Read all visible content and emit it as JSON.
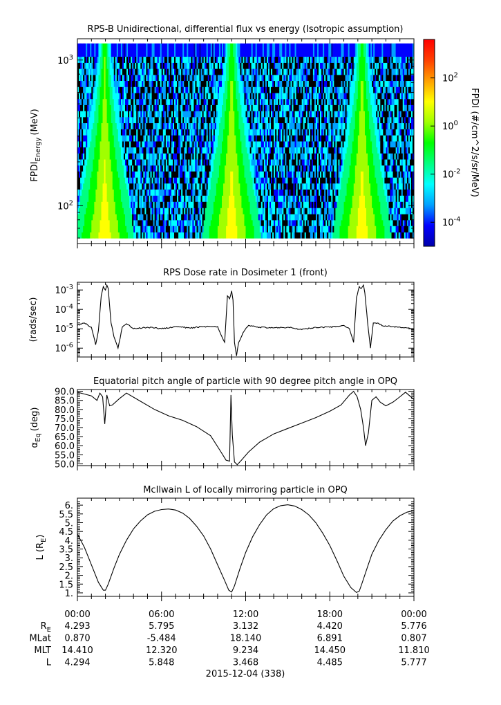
{
  "chart_data": [
    {
      "type": "heatmap",
      "title": "RPS-B  Unidirectional, differential flux vs energy (Isotropic assumption)",
      "ylabel": "FPDI",
      "ylabel_sub": "Energy",
      "ylabel_unit": "(MeV)",
      "yscale": "log",
      "ylim": [
        55,
        1400
      ],
      "yticks": [
        {
          "base": "10",
          "exp": "3",
          "value": 1000
        },
        {
          "base": "10",
          "exp": "2",
          "value": 100
        }
      ],
      "energy_bins_mev": [
        60,
        66,
        73,
        80,
        88,
        97,
        107,
        118,
        130,
        143,
        157,
        173,
        190,
        209,
        230,
        253,
        278,
        306,
        337,
        371,
        408,
        449,
        494,
        543,
        597,
        657,
        723,
        795,
        875,
        962,
        1060,
        1300
      ],
      "flux_peaks_hours": [
        1.95,
        11.0,
        20.3
      ],
      "colorbar": {
        "label": "FPDI (#/cm^2/s/sr/MeV)",
        "scale": "log",
        "range_exp": [
          -5,
          3.6
        ],
        "ticks": [
          {
            "base": "10",
            "exp": "2",
            "value": 100
          },
          {
            "base": "10",
            "exp": "0",
            "value": 1
          },
          {
            "base": "10",
            "exp": "-2",
            "value": 0.01
          },
          {
            "base": "10",
            "exp": "-4",
            "value": 0.0001
          }
        ],
        "colors": [
          "#0000aa",
          "#0000ff",
          "#00a0ff",
          "#00ffff",
          "#00ff80",
          "#00ff00",
          "#a0ff00",
          "#ffff00",
          "#ffa000",
          "#ff4000",
          "#ff0000"
        ]
      }
    },
    {
      "type": "line",
      "title": "RPS  Dose rate in Dosimeter 1 (front)",
      "ylabel": "(rads/sec)",
      "yscale": "log",
      "ylim": [
        3.5e-07,
        0.0025
      ],
      "yticks": [
        {
          "base": "10",
          "exp": "-3",
          "value": 0.001
        },
        {
          "base": "10",
          "exp": "-4",
          "value": 0.0001
        },
        {
          "base": "10",
          "exp": "-5",
          "value": 1e-05
        },
        {
          "base": "10",
          "exp": "-6",
          "value": 1e-06
        }
      ],
      "series": [
        {
          "x": [
            0,
            0.5,
            1.0,
            1.3,
            1.5,
            1.7,
            1.85,
            2.0,
            2.1,
            2.2,
            2.4,
            2.6,
            2.9,
            3.2,
            3.5,
            4,
            5,
            6,
            7,
            8,
            9,
            10,
            10.3,
            10.5,
            10.7,
            10.85,
            11.0,
            11.1,
            11.2,
            11.35,
            11.5,
            11.8,
            12.2,
            13,
            14,
            15,
            16,
            17,
            18,
            19,
            19.4,
            19.7,
            19.9,
            20.1,
            20.25,
            20.4,
            20.5,
            20.7,
            20.9,
            21.1,
            21.4,
            21.8,
            22.5,
            23.5,
            24
          ],
          "y": [
            1.5e-05,
            2e-05,
            1.2e-05,
            1.5e-06,
            8e-06,
            0.0005,
            0.0015,
            0.001,
            0.0018,
            0.0012,
            2e-05,
            4e-06,
            1e-06,
            1.2e-05,
            1.8e-05,
            1e-05,
            1.2e-05,
            1e-05,
            1.3e-05,
            1.1e-05,
            1.3e-05,
            1.3e-05,
            4e-06,
            2e-06,
            0.0005,
            0.00035,
            0.0009,
            0.0003,
            2e-06,
            4e-07,
            2e-06,
            6e-06,
            1.5e-05,
            1.2e-05,
            1.1e-05,
            1.2e-05,
            9e-06,
            1.2e-05,
            1.2e-05,
            1.5e-05,
            1e-05,
            2e-06,
            0.0004,
            0.0015,
            0.0012,
            0.0018,
            0.0007,
            2e-05,
            1e-06,
            2e-05,
            2e-05,
            1.4e-05,
            1.3e-05,
            1.1e-05,
            1e-05
          ]
        }
      ]
    },
    {
      "type": "line",
      "title": "Equatorial pitch angle of particle with 90 degree pitch angle in OPQ",
      "ylabel": "α",
      "ylabel_sub": "Eq",
      "ylabel_unit": "(deg)",
      "ylim": [
        49,
        91
      ],
      "yticks": [
        90,
        85,
        80,
        75,
        70,
        65,
        60,
        55,
        50
      ],
      "series": [
        {
          "x": [
            0,
            0.5,
            1.0,
            1.4,
            1.6,
            1.8,
            1.95,
            2.1,
            2.3,
            2.5,
            3.0,
            3.5,
            4.5,
            5.5,
            6.5,
            7.5,
            8.5,
            9.5,
            10.2,
            10.6,
            10.85,
            10.95,
            11.05,
            11.2,
            11.4,
            11.7,
            12.2,
            13,
            14,
            15,
            16,
            17,
            18,
            18.8,
            19.4,
            19.7,
            19.95,
            20.2,
            20.4,
            20.55,
            20.75,
            21.0,
            21.3,
            21.6,
            22.0,
            22.5,
            23.0,
            23.4,
            24
          ],
          "y": [
            89.5,
            88.5,
            87.5,
            85,
            89,
            87,
            72,
            88,
            82,
            82.5,
            86,
            89,
            84.5,
            80,
            76.5,
            74,
            70.5,
            65.5,
            57,
            52,
            51.5,
            88,
            66,
            51,
            49.5,
            52,
            56.5,
            62,
            66.5,
            69.5,
            72.5,
            75.5,
            79,
            82.5,
            88,
            90,
            87,
            80,
            70,
            60,
            67,
            85,
            87,
            84,
            82,
            84,
            87,
            89.5,
            85.5
          ]
        }
      ]
    },
    {
      "type": "line",
      "title": "McIlwain L of locally mirroring particle in OPQ",
      "ylabel": "L (R",
      "ylabel_sub": "E",
      "ylabel_unit": ")",
      "ylim": [
        0.8,
        6.4
      ],
      "yticks": [
        1,
        1.5,
        2,
        2.5,
        3,
        3.5,
        4,
        4.5,
        5,
        5.5,
        6
      ],
      "yticklabels": [
        "1.",
        "1.5",
        "2.",
        "2.5",
        "3.",
        "3.5",
        "4.",
        "4.5",
        "5.",
        "5.5",
        "6."
      ],
      "series": [
        {
          "x": [
            0,
            0.5,
            1.0,
            1.5,
            1.85,
            2.0,
            2.2,
            2.6,
            3.0,
            3.5,
            4,
            4.5,
            5,
            5.5,
            6,
            6.5,
            7,
            7.5,
            8,
            8.5,
            9,
            9.5,
            10,
            10.5,
            10.8,
            11.0,
            11.2,
            11.6,
            12,
            12.5,
            13,
            13.5,
            14,
            14.5,
            15,
            15.5,
            16,
            16.5,
            17,
            17.5,
            18,
            18.5,
            19,
            19.5,
            19.9,
            20.1,
            20.3,
            20.7,
            21,
            21.5,
            22,
            22.5,
            23,
            23.5,
            24
          ],
          "y": [
            4.35,
            3.6,
            2.6,
            1.6,
            1.15,
            1.15,
            1.5,
            2.4,
            3.2,
            4.0,
            4.65,
            5.1,
            5.45,
            5.65,
            5.75,
            5.78,
            5.72,
            5.55,
            5.25,
            4.8,
            4.25,
            3.5,
            2.6,
            1.7,
            1.15,
            1.05,
            1.4,
            2.4,
            3.3,
            4.2,
            4.9,
            5.45,
            5.8,
            5.97,
            6.02,
            5.95,
            5.75,
            5.45,
            5.0,
            4.4,
            3.7,
            2.85,
            1.95,
            1.3,
            1.02,
            1.1,
            1.55,
            2.5,
            3.2,
            4.0,
            4.6,
            5.1,
            5.4,
            5.6,
            5.7
          ]
        }
      ]
    }
  ],
  "x_axis": {
    "xlim_hours": [
      0,
      24
    ],
    "tick_hours": [
      0,
      6,
      12,
      18,
      24
    ],
    "time_labels": [
      "00:00",
      "06:00",
      "12:00",
      "18:00",
      "00:00"
    ],
    "ephemeris_rows": [
      {
        "label": "R",
        "label_sub": "E",
        "values": [
          "4.293",
          "5.795",
          "3.132",
          "4.420",
          "5.776"
        ]
      },
      {
        "label": "MLat",
        "values": [
          "0.870",
          "-5.484",
          "18.140",
          "6.891",
          "0.807"
        ]
      },
      {
        "label": "MLT",
        "values": [
          "14.410",
          "12.320",
          "9.234",
          "14.450",
          "11.810"
        ]
      },
      {
        "label": "L",
        "values": [
          "4.294",
          "5.848",
          "3.468",
          "4.485",
          "5.777"
        ]
      }
    ],
    "date_label": "2015-12-04 (338)"
  }
}
